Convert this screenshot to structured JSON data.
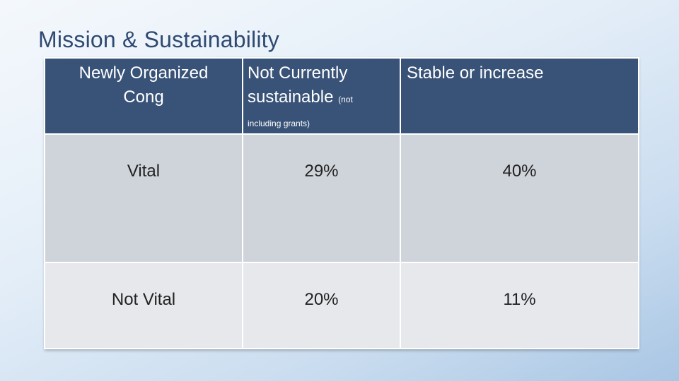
{
  "slide": {
    "title": "Mission & Sustainability"
  },
  "table": {
    "headers": [
      {
        "line1": "Newly Organized",
        "line2": "Cong"
      },
      {
        "line1": "Not Currently",
        "line2": "sustainable",
        "note_a": "(not",
        "note_b": "including grants)"
      },
      {
        "text": "Stable or increase"
      }
    ],
    "rows": [
      {
        "label": "Vital",
        "not_sustainable": "29%",
        "stable": "40%"
      },
      {
        "label": "Not Vital",
        "not_sustainable": "20%",
        "stable": "11%"
      }
    ]
  },
  "colors": {
    "header_bg": "#395378",
    "row1_bg": "#cfd3da",
    "row2_bg": "#e7e8ec",
    "title_color": "#2f4a72"
  }
}
